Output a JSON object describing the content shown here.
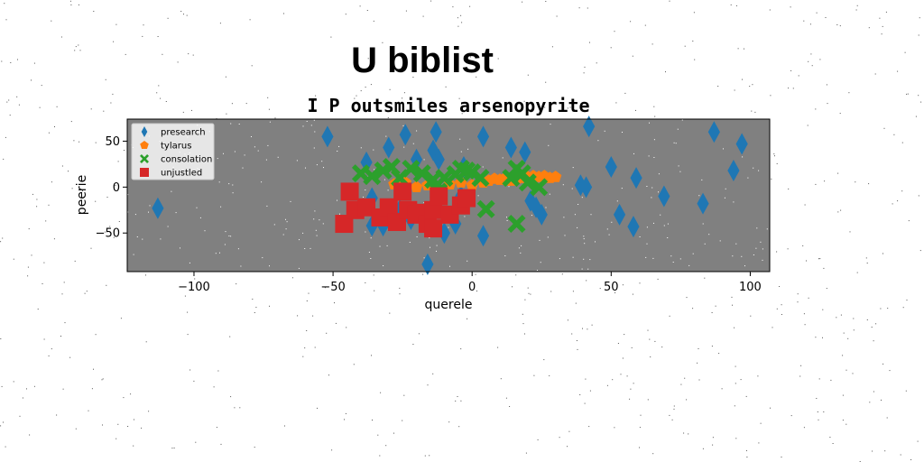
{
  "figure_title": "U biblist",
  "chart_data": {
    "type": "scatter",
    "title": "I P outsmiles arsenopyrite",
    "xlabel": "querele",
    "ylabel": "peerie",
    "xlim": [
      -124,
      107
    ],
    "ylim": [
      -92,
      74
    ],
    "xticks": [
      -100,
      -50,
      0,
      50,
      100
    ],
    "xtick_labels": [
      "−100",
      "−50",
      "0",
      "50",
      "100"
    ],
    "yticks": [
      -50,
      0,
      50
    ],
    "ytick_labels": [
      "−50",
      "0",
      "50"
    ],
    "grid": false,
    "legend_position": "upper-left",
    "plot_background": "#808080",
    "series": [
      {
        "name": "presearch",
        "marker": "thin_diamond",
        "color": "#1f77b4",
        "points": [
          [
            -113,
            -23
          ],
          [
            -52,
            55
          ],
          [
            -38,
            27
          ],
          [
            -36,
            -12
          ],
          [
            -36,
            -42
          ],
          [
            -32,
            -42
          ],
          [
            -30,
            43
          ],
          [
            -26,
            -25
          ],
          [
            -24,
            57
          ],
          [
            -22,
            -35
          ],
          [
            -20,
            30
          ],
          [
            -18,
            -30
          ],
          [
            -16,
            -84
          ],
          [
            -14,
            40
          ],
          [
            -13,
            60
          ],
          [
            -12,
            30
          ],
          [
            -10,
            -50
          ],
          [
            -6,
            -40
          ],
          [
            -4,
            -10
          ],
          [
            -3,
            22
          ],
          [
            4,
            55
          ],
          [
            4,
            -53
          ],
          [
            14,
            43
          ],
          [
            19,
            38
          ],
          [
            21,
            -15
          ],
          [
            23,
            -22
          ],
          [
            25,
            -30
          ],
          [
            39,
            2
          ],
          [
            41,
            0
          ],
          [
            42,
            66
          ],
          [
            50,
            22
          ],
          [
            53,
            -30
          ],
          [
            58,
            -43
          ],
          [
            59,
            10
          ],
          [
            69,
            -10
          ],
          [
            83,
            -18
          ],
          [
            87,
            60
          ],
          [
            94,
            18
          ],
          [
            97,
            47
          ]
        ]
      },
      {
        "name": "tylarus",
        "marker": "pentagon",
        "color": "#ff7f0e",
        "points": [
          [
            -28,
            3
          ],
          [
            -24,
            5
          ],
          [
            -20,
            0
          ],
          [
            -16,
            2
          ],
          [
            -12,
            -2
          ],
          [
            -8,
            3
          ],
          [
            -4,
            5
          ],
          [
            0,
            2
          ],
          [
            4,
            5
          ],
          [
            6,
            7
          ],
          [
            8,
            9
          ],
          [
            10,
            8
          ],
          [
            12,
            10
          ],
          [
            14,
            7
          ],
          [
            16,
            9
          ],
          [
            18,
            10
          ],
          [
            20,
            11
          ],
          [
            22,
            12
          ],
          [
            24,
            11
          ],
          [
            26,
            12
          ],
          [
            28,
            10
          ],
          [
            30,
            11
          ]
        ]
      },
      {
        "name": "consolation",
        "marker": "X",
        "color": "#2ca02c",
        "points": [
          [
            -40,
            15
          ],
          [
            -36,
            12
          ],
          [
            -32,
            18
          ],
          [
            -29,
            22
          ],
          [
            -26,
            10
          ],
          [
            -22,
            20
          ],
          [
            -18,
            15
          ],
          [
            -14,
            8
          ],
          [
            -12,
            -5
          ],
          [
            -10,
            10
          ],
          [
            -6,
            14
          ],
          [
            -4,
            20
          ],
          [
            -2,
            18
          ],
          [
            0,
            16
          ],
          [
            3,
            10
          ],
          [
            5,
            -24
          ],
          [
            14,
            10
          ],
          [
            16,
            20
          ],
          [
            18,
            15
          ],
          [
            20,
            5
          ],
          [
            24,
            0
          ],
          [
            16,
            -40
          ]
        ]
      },
      {
        "name": "unjustled",
        "marker": "square",
        "color": "#d62728",
        "points": [
          [
            -46,
            -40
          ],
          [
            -44,
            -5
          ],
          [
            -42,
            -25
          ],
          [
            -38,
            -22
          ],
          [
            -33,
            -33
          ],
          [
            -30,
            -22
          ],
          [
            -27,
            -38
          ],
          [
            -25,
            -5
          ],
          [
            -23,
            -25
          ],
          [
            -20,
            -30
          ],
          [
            -18,
            -28
          ],
          [
            -16,
            -40
          ],
          [
            -14,
            -25
          ],
          [
            -12,
            -10
          ],
          [
            -8,
            -30
          ],
          [
            -4,
            -20
          ],
          [
            -2,
            -12
          ],
          [
            -14,
            -45
          ]
        ]
      }
    ]
  }
}
